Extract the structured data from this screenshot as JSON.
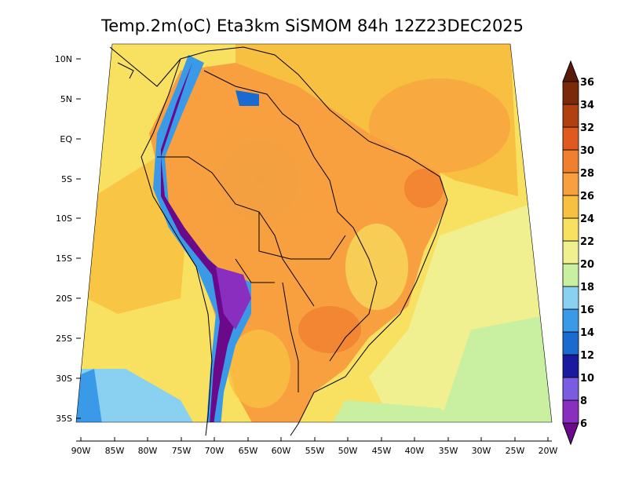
{
  "title": "Temp.2m(oC) Eta3km SiSMOM 84h 12Z23DEC2025",
  "lat_labels": [
    "10N",
    "5N",
    "EQ",
    "5S",
    "10S",
    "15S",
    "20S",
    "25S",
    "30S",
    "35S"
  ],
  "lon_labels": [
    "90W",
    "85W",
    "80W",
    "75W",
    "70W",
    "65W",
    "60W",
    "55W",
    "50W",
    "45W",
    "40W",
    "35W",
    "30W",
    "25W",
    "20W"
  ],
  "colorbar": {
    "levels": [
      "6",
      "8",
      "10",
      "12",
      "14",
      "16",
      "18",
      "20",
      "22",
      "24",
      "26",
      "28",
      "30",
      "32",
      "34",
      "36"
    ],
    "colors": [
      "#6a0a8a",
      "#8a2ec0",
      "#7a5ce0",
      "#1a1aa0",
      "#1a6ad0",
      "#3a9ae8",
      "#8ad0f0",
      "#c8f0a0",
      "#f0f090",
      "#f8e060",
      "#f8c040",
      "#f8a040",
      "#f08030",
      "#e05a20",
      "#b04010",
      "#7a2a08",
      "#5a1a08"
    ]
  }
}
